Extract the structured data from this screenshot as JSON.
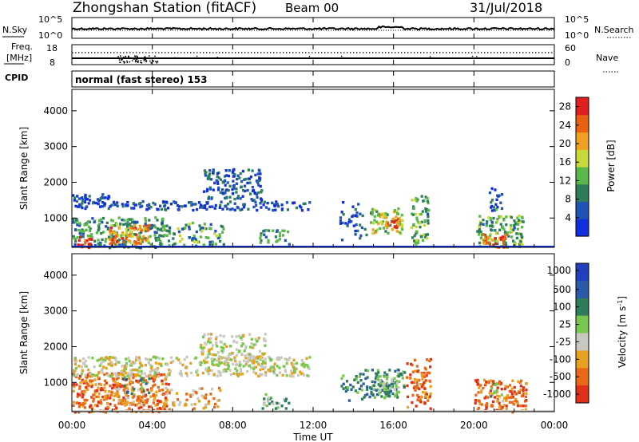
{
  "header": {
    "station": "Zhongshan Station (fitACF)",
    "beam": "Beam 00",
    "date": "31/Jul/2018"
  },
  "nsky_panel": {
    "left_label": "N.Sky",
    "left_top": "10^5",
    "left_bottom": "10^0",
    "right_top": "10^5",
    "right_bottom": "10^0",
    "right_label": "N.Search"
  },
  "freq_panel": {
    "label_1": "Freq.",
    "label_2": "[MHz]",
    "left_top": "18",
    "left_bottom": "8",
    "right_top": "60",
    "right_bottom": "0",
    "right_label": "Nave"
  },
  "cpid": {
    "label": "CPID",
    "mode": "normal (fast stereo) 153"
  },
  "x_axis": {
    "title": "Time UT",
    "ticks": [
      "00:00",
      "04:00",
      "08:00",
      "12:00",
      "16:00",
      "20:00",
      "00:00"
    ]
  },
  "colors": {
    "power_scale": [
      "#1030e0",
      "#1e52b8",
      "#2e7d5a",
      "#58b848",
      "#c8d838",
      "#f0a020",
      "#e86010",
      "#e02020"
    ],
    "velocity_scale": [
      "#2040c0",
      "#2a5aa8",
      "#2e7d5a",
      "#78c850",
      "#c8c8c0",
      "#e8a020",
      "#e86818",
      "#e03018"
    ]
  },
  "chart_data": [
    {
      "type": "heatmap",
      "name": "power",
      "ylabel": "Slant Range [km]",
      "xlabel": "",
      "yticks": [
        "1000",
        "2000",
        "3000",
        "4000"
      ],
      "ylim": [
        180,
        4600
      ],
      "xlim": [
        0,
        24
      ],
      "colorbar_label": "Power [dB]",
      "colorbar_ticks": [
        "4",
        "8",
        "12",
        "16",
        "20",
        "24",
        "28"
      ],
      "clim": [
        0,
        30
      ],
      "blobs": [
        {
          "t0": 0.0,
          "t1": 4.6,
          "r0": 200,
          "r1": 1050,
          "v": 10,
          "d": 0.55
        },
        {
          "t0": 1.8,
          "t1": 3.8,
          "r0": 300,
          "r1": 850,
          "v": 22,
          "d": 0.75
        },
        {
          "t0": 0.2,
          "t1": 1.0,
          "r0": 200,
          "r1": 500,
          "v": 26,
          "d": 0.7
        },
        {
          "t0": 0.0,
          "t1": 1.8,
          "r0": 1300,
          "r1": 1700,
          "v": 5,
          "d": 0.7
        },
        {
          "t0": 1.8,
          "t1": 11.8,
          "r0": 1250,
          "r1": 1500,
          "v": 5,
          "d": 0.55
        },
        {
          "t0": 4.3,
          "t1": 7.5,
          "r0": 250,
          "r1": 900,
          "v": 11,
          "d": 0.4
        },
        {
          "t0": 6.5,
          "t1": 9.4,
          "r0": 1500,
          "r1": 2400,
          "v": 5,
          "d": 0.5
        },
        {
          "t0": 9.3,
          "t1": 10.8,
          "r0": 300,
          "r1": 700,
          "v": 10,
          "d": 0.45
        },
        {
          "t0": 13.3,
          "t1": 14.6,
          "r0": 400,
          "r1": 1500,
          "v": 6,
          "d": 0.25
        },
        {
          "t0": 14.8,
          "t1": 16.4,
          "r0": 600,
          "r1": 1300,
          "v": 15,
          "d": 0.6
        },
        {
          "t0": 15.5,
          "t1": 16.2,
          "r0": 700,
          "r1": 1100,
          "v": 23,
          "d": 0.7
        },
        {
          "t0": 16.8,
          "t1": 17.7,
          "r0": 300,
          "r1": 1700,
          "v": 12,
          "d": 0.5
        },
        {
          "t0": 20.1,
          "t1": 22.4,
          "r0": 200,
          "r1": 1100,
          "v": 12,
          "d": 0.6
        },
        {
          "t0": 20.4,
          "t1": 21.6,
          "r0": 200,
          "r1": 600,
          "v": 25,
          "d": 0.6
        },
        {
          "t0": 20.7,
          "t1": 21.4,
          "r0": 1200,
          "r1": 1900,
          "v": 7,
          "d": 0.4
        }
      ]
    },
    {
      "type": "heatmap",
      "name": "velocity",
      "ylabel": "Slant Range [km]",
      "xlabel": "Time UT",
      "yticks": [
        "1000",
        "2000",
        "3000",
        "4000"
      ],
      "ylim": [
        180,
        4600
      ],
      "xlim": [
        0,
        24
      ],
      "colorbar_label": "Velocity [m s^-1]",
      "colorbar_ticks": [
        "1000",
        "500",
        "100",
        "25",
        "-25",
        "-100",
        "-500",
        "-1000"
      ],
      "blobs": [
        {
          "t0": 0.0,
          "t1": 4.8,
          "r0": 200,
          "r1": 1300,
          "c": 6,
          "d": 0.6
        },
        {
          "t0": 1.5,
          "t1": 3.5,
          "r0": 400,
          "r1": 900,
          "c": 5,
          "d": 0.5
        },
        {
          "t0": 2.5,
          "t1": 3.8,
          "r0": 700,
          "r1": 1200,
          "c": 2,
          "d": 0.25
        },
        {
          "t0": 0.0,
          "t1": 11.8,
          "r0": 1200,
          "r1": 1750,
          "c": 4,
          "d": 0.55
        },
        {
          "t0": 6.3,
          "t1": 9.6,
          "r0": 1500,
          "r1": 2400,
          "c": 4,
          "d": 0.5
        },
        {
          "t0": 4.5,
          "t1": 7.5,
          "r0": 300,
          "r1": 900,
          "c": 5,
          "d": 0.3
        },
        {
          "t0": 9.3,
          "t1": 10.8,
          "r0": 300,
          "r1": 700,
          "c": 3,
          "d": 0.45
        },
        {
          "t0": 13.3,
          "t1": 14.5,
          "r0": 500,
          "r1": 1300,
          "c": 2,
          "d": 0.3
        },
        {
          "t0": 14.5,
          "t1": 16.5,
          "r0": 600,
          "r1": 1400,
          "c": 2,
          "d": 0.6
        },
        {
          "t0": 15.0,
          "t1": 16.3,
          "r0": 800,
          "r1": 1300,
          "c": 3,
          "d": 0.45
        },
        {
          "t0": 16.6,
          "t1": 17.8,
          "r0": 300,
          "r1": 1700,
          "c": 6,
          "d": 0.5
        },
        {
          "t0": 20.0,
          "t1": 22.6,
          "r0": 200,
          "r1": 1100,
          "c": 6,
          "d": 0.55
        },
        {
          "t0": 20.6,
          "t1": 21.4,
          "r0": 500,
          "r1": 1000,
          "c": 3,
          "d": 0.3
        }
      ]
    }
  ]
}
